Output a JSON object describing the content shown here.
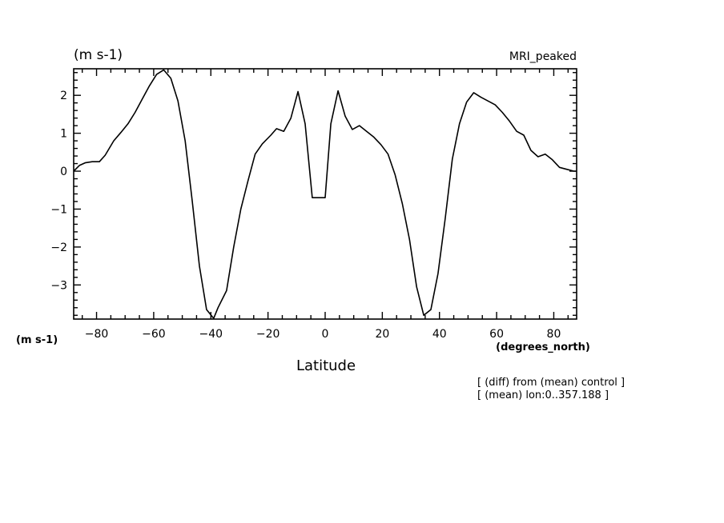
{
  "chart_data": {
    "type": "line",
    "title": "MRI_peaked",
    "ylabel": "(m s-1)",
    "ylabel_left": "(m s-1)",
    "xlabel": "Latitude",
    "xunits": "(degrees_north)",
    "notes": [
      "[ (diff) from (mean) control ]",
      "[ (mean) lon:0..357.188 ]"
    ],
    "xlim": [
      -88,
      88
    ],
    "ylim": [
      -3.9,
      2.7
    ],
    "xticks": [
      -80,
      -60,
      -40,
      -20,
      0,
      20,
      40,
      60,
      80
    ],
    "yticks": [
      -3,
      -2,
      -1,
      0,
      1,
      2
    ],
    "grid": false,
    "series": [
      {
        "x": [
          -88,
          -86,
          -84,
          -81.5,
          -79,
          -77,
          -74,
          -71.5,
          -69,
          -66.5,
          -64,
          -61.5,
          -59,
          -56.5,
          -54,
          -51.5,
          -49,
          -46.5,
          -44,
          -41.5,
          -39,
          -37.5,
          -34.5,
          -32,
          -29.5,
          -27,
          -24.5,
          -22,
          -19,
          -17,
          -14.5,
          -12,
          -9.5,
          -7,
          -4.5,
          -2,
          0,
          2,
          4.5,
          7,
          9.5,
          12,
          14.5,
          17,
          19.5,
          22,
          24.5,
          27,
          29.5,
          32,
          34.5,
          37,
          39.5,
          42,
          44.5,
          47,
          49.5,
          52,
          54.5,
          57,
          59.5,
          62,
          64.5,
          67,
          69.5,
          72,
          74.5,
          77,
          79.5,
          82,
          84.5,
          87,
          88
        ],
        "values": [
          0,
          0.15,
          0.22,
          0.25,
          0.25,
          0.42,
          0.8,
          1.02,
          1.25,
          1.55,
          1.9,
          2.25,
          2.55,
          2.67,
          2.45,
          1.85,
          0.8,
          -0.8,
          -2.5,
          -3.65,
          -3.88,
          -3.6,
          -3.15,
          -2.0,
          -1.0,
          -0.25,
          0.45,
          0.72,
          0.95,
          1.12,
          1.05,
          1.4,
          2.1,
          1.25,
          -0.7,
          -0.7,
          -0.7,
          1.25,
          2.12,
          1.45,
          1.1,
          1.2,
          1.05,
          0.9,
          0.7,
          0.45,
          -0.1,
          -0.85,
          -1.8,
          -3.05,
          -3.8,
          -3.65,
          -2.7,
          -1.25,
          0.32,
          1.25,
          1.82,
          2.07,
          1.95,
          1.85,
          1.75,
          1.55,
          1.32,
          1.05,
          0.95,
          0.55,
          0.38,
          0.45,
          0.3,
          0.1,
          0.05,
          0,
          0
        ]
      }
    ]
  }
}
